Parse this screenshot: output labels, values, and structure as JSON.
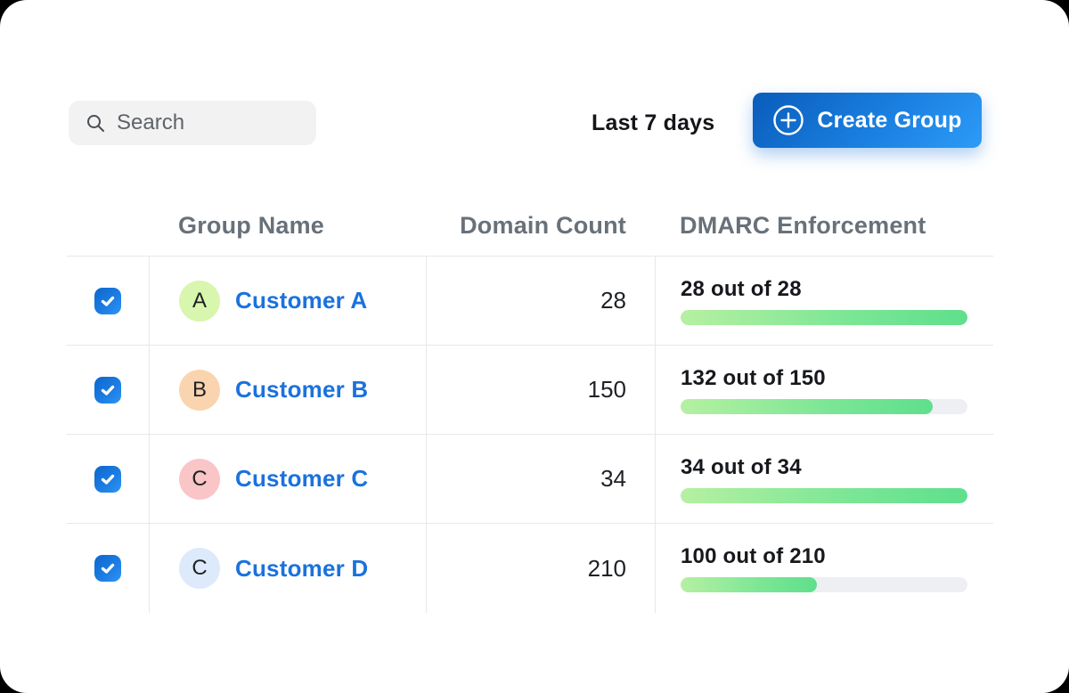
{
  "toolbar": {
    "search": {
      "placeholder": "Search"
    },
    "date_range": "Last 7 days",
    "create_group_label": "Create Group"
  },
  "table": {
    "columns": {
      "group_name": "Group Name",
      "domain_count": "Domain Count",
      "dmarc": "DMARC Enforcement"
    },
    "rows": [
      {
        "checked": true,
        "avatar_letter": "A",
        "avatar_color": "#d8f6ad",
        "name": "Customer A",
        "domain_count": "28",
        "dmarc_label": "28 out of 28",
        "enforced": 28,
        "total": 28
      },
      {
        "checked": true,
        "avatar_letter": "B",
        "avatar_color": "#fad4ae",
        "name": "Customer B",
        "domain_count": "150",
        "dmarc_label": "132 out of 150",
        "enforced": 132,
        "total": 150
      },
      {
        "checked": true,
        "avatar_letter": "C",
        "avatar_color": "#f9c5c7",
        "name": "Customer C",
        "domain_count": "34",
        "dmarc_label": "34 out of 34",
        "enforced": 34,
        "total": 34
      },
      {
        "checked": true,
        "avatar_letter": "C",
        "avatar_color": "#dceafc",
        "name": "Customer D",
        "domain_count": "210",
        "dmarc_label": "100 out of 210",
        "enforced": 100,
        "total": 210
      }
    ]
  },
  "colors": {
    "accent_blue": "#1a72dd",
    "button_gradient_start": "#0a5cba",
    "button_gradient_end": "#2d9bf7",
    "bar_gradient_start": "#b6f0a2",
    "bar_gradient_end": "#5fdf8c",
    "bar_track": "#edeff2",
    "border": "#e6e8ea",
    "header_text": "#68717a"
  }
}
